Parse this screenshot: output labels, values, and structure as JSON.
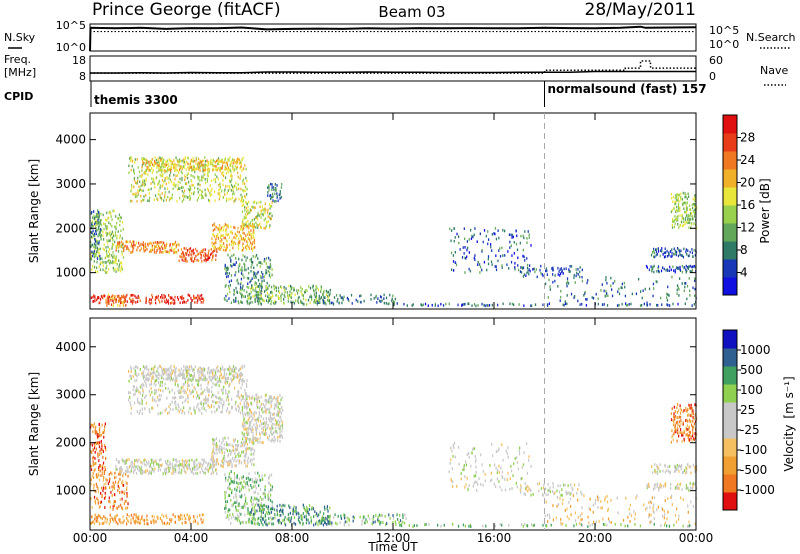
{
  "header": {
    "station": "Prince George (fitACF)",
    "beam": "Beam 03",
    "date": "28/May/2011"
  },
  "colors": {
    "power": [
      "#1010e0",
      "#1838b8",
      "#2f7a66",
      "#63a85a",
      "#99d04c",
      "#e8e63a",
      "#f0b028",
      "#ef7820",
      "#e83c18",
      "#e01010"
    ],
    "velocity": [
      "#e01010",
      "#ef7820",
      "#f0a030",
      "#f5c060",
      "#c8c8c8",
      "#c8c8c8",
      "#90d050",
      "#40a060",
      "#2f6090",
      "#1010c0"
    ],
    "ground_scatter": "#c0c0c0"
  },
  "chart_data": [
    {
      "type": "line",
      "panel": "nsky",
      "ylabel": "N.Sky",
      "yticks": [
        "10^5",
        "10^0"
      ],
      "right_label": "N.Search",
      "right_yticks": [
        "10^5",
        "10^0"
      ],
      "nsky_x_hours": [
        0.0,
        0.02,
        1,
        2,
        3,
        4,
        5,
        6,
        7,
        8,
        9,
        10,
        11,
        12,
        13,
        14,
        15,
        16,
        17,
        18,
        19,
        20,
        21,
        21.8,
        22,
        23,
        24
      ],
      "nsky_level": [
        0.0,
        0.86,
        0.84,
        0.86,
        0.82,
        0.85,
        0.84,
        0.87,
        0.8,
        0.82,
        0.83,
        0.82,
        0.84,
        0.83,
        0.85,
        0.84,
        0.85,
        0.84,
        0.84,
        0.86,
        0.85,
        0.84,
        0.86,
        0.9,
        0.86,
        0.87,
        0.88
      ],
      "nsearch_level": 0.72
    },
    {
      "type": "line",
      "panel": "freq",
      "ylabel_top": "Freq.",
      "ylabel_unit": "[MHz]",
      "yticks": [
        "18",
        "8"
      ],
      "right_label": "Nave",
      "right_yticks": [
        "60",
        "0"
      ],
      "freq_x_hours": [
        0,
        1,
        2,
        3,
        4,
        5,
        6,
        7,
        8,
        9,
        10,
        11,
        12,
        13,
        14,
        15,
        16,
        17,
        18,
        19,
        20,
        21,
        22,
        23,
        24
      ],
      "freq_mhz": [
        11.2,
        11.2,
        11.3,
        11.2,
        11.4,
        11.3,
        11.3,
        11.6,
        11.6,
        11.5,
        11.5,
        11.6,
        11.5,
        11.5,
        11.4,
        11.4,
        11.4,
        11.5,
        11.5,
        11.5,
        11.8,
        11.8,
        11.8,
        11.8,
        11.8
      ],
      "nave_x_hours": [
        0,
        18,
        18.01,
        21.2,
        21.2,
        21.8,
        21.8,
        22.2,
        22.2,
        24
      ],
      "nave": [
        19,
        19,
        26,
        26,
        31,
        31,
        48,
        48,
        31,
        31
      ]
    },
    {
      "type": "table",
      "panel": "cpid",
      "label": "CPID",
      "entries": [
        {
          "start_hour": 0,
          "text": "themis 3300"
        },
        {
          "start_hour": 18,
          "text": "normalsound (fast) 157"
        }
      ]
    },
    {
      "type": "heatmap",
      "panel": "power",
      "ylabel": "Slant Range [km]",
      "yticks": [
        "1000",
        "2000",
        "3000",
        "4000"
      ],
      "ylim": [
        180,
        4600
      ],
      "colorbar_label": "Power [dB]",
      "colorbar_ticks": [
        "4",
        "8",
        "12",
        "16",
        "20",
        "24",
        "28"
      ],
      "regions": [
        {
          "t0": 0.0,
          "t1": 4.5,
          "r0": 300,
          "r1": 500,
          "level": 8.5,
          "density": 0.55
        },
        {
          "t0": 0.6,
          "t1": 1.4,
          "r0": 250,
          "r1": 520,
          "level": 6.5,
          "density": 0.4
        },
        {
          "t0": 0.0,
          "t1": 1.3,
          "r0": 1000,
          "r1": 2400,
          "level": 4,
          "density": 0.35
        },
        {
          "t0": 0.0,
          "t1": 0.4,
          "r0": 1300,
          "r1": 2400,
          "level": 2,
          "density": 0.45
        },
        {
          "t0": 1.0,
          "t1": 3.5,
          "r0": 1450,
          "r1": 1700,
          "level": 6.5,
          "density": 0.6
        },
        {
          "t0": 3.5,
          "t1": 5.0,
          "r0": 1250,
          "r1": 1550,
          "level": 7.5,
          "density": 0.6
        },
        {
          "t0": 4.8,
          "t1": 6.5,
          "r0": 1500,
          "r1": 2100,
          "level": 6,
          "density": 0.5
        },
        {
          "t0": 6.0,
          "t1": 7.2,
          "r0": 2000,
          "r1": 2600,
          "level": 4.5,
          "density": 0.45
        },
        {
          "t0": 7.0,
          "t1": 7.6,
          "r0": 2600,
          "r1": 3000,
          "level": 2,
          "density": 0.45
        },
        {
          "t0": 1.5,
          "t1": 6.2,
          "r0": 2600,
          "r1": 3600,
          "level": 4.5,
          "density": 0.3
        },
        {
          "t0": 2.0,
          "t1": 6.0,
          "r0": 3300,
          "r1": 3550,
          "level": 5.5,
          "density": 0.55
        },
        {
          "t0": 5.3,
          "t1": 7.2,
          "r0": 300,
          "r1": 1400,
          "level": 2.5,
          "density": 0.3
        },
        {
          "t0": 6.2,
          "t1": 9.5,
          "r0": 280,
          "r1": 700,
          "level": 3.5,
          "density": 0.4
        },
        {
          "t0": 9.0,
          "t1": 12.5,
          "r0": 280,
          "r1": 500,
          "level": 2,
          "density": 0.25
        },
        {
          "t0": 12.0,
          "t1": 24.0,
          "r0": 250,
          "r1": 300,
          "level": 1.5,
          "density": 0.35
        },
        {
          "t0": 14.2,
          "t1": 17.5,
          "r0": 1000,
          "r1": 2000,
          "level": 1.5,
          "density": 0.12
        },
        {
          "t0": 17.0,
          "t1": 19.5,
          "r0": 900,
          "r1": 1150,
          "level": 1.5,
          "density": 0.25
        },
        {
          "t0": 18.0,
          "t1": 24.0,
          "r0": 300,
          "r1": 900,
          "level": 2,
          "density": 0.1
        },
        {
          "t0": 22.2,
          "t1": 24.0,
          "r0": 1350,
          "r1": 1550,
          "level": 1.5,
          "density": 0.55
        },
        {
          "t0": 22.0,
          "t1": 24.0,
          "r0": 1000,
          "r1": 1150,
          "level": 1.5,
          "density": 0.45
        },
        {
          "t0": 23.0,
          "t1": 24.0,
          "r0": 2000,
          "r1": 2800,
          "level": 4,
          "density": 0.45
        }
      ]
    },
    {
      "type": "heatmap",
      "panel": "velocity",
      "ylabel": "Slant Range [km]",
      "yticks": [
        "1000",
        "2000",
        "3000",
        "4000"
      ],
      "ylim": [
        180,
        4600
      ],
      "xlabel": "Time UT",
      "xticks": [
        "00:00",
        "04:00",
        "08:00",
        "12:00",
        "16:00",
        "20:00",
        "00:00"
      ],
      "colorbar_label": "Velocity",
      "colorbar_unit": "[m s⁻¹]",
      "colorbar_ticks": [
        "1000",
        "500",
        "100",
        "25",
        "-25",
        "-100",
        "-500",
        "-1000"
      ],
      "regions": [
        {
          "t0": 0.0,
          "t1": 4.5,
          "r0": 300,
          "r1": 500,
          "level": 2,
          "density": 0.55
        },
        {
          "t0": 0.0,
          "t1": 0.6,
          "r0": 1400,
          "r1": 2400,
          "level": 1,
          "density": 0.45
        },
        {
          "t0": 0.0,
          "t1": 1.5,
          "r0": 600,
          "r1": 1400,
          "level": 1.5,
          "density": 0.3
        },
        {
          "t0": 1.0,
          "t1": 5.0,
          "r0": 1350,
          "r1": 1650,
          "level": 4.5,
          "density": 0.6
        },
        {
          "t0": 4.8,
          "t1": 6.5,
          "r0": 1500,
          "r1": 2100,
          "level": 4.5,
          "density": 0.5
        },
        {
          "t0": 6.0,
          "t1": 7.6,
          "r0": 2000,
          "r1": 3000,
          "level": 4.5,
          "density": 0.5
        },
        {
          "t0": 1.5,
          "t1": 6.2,
          "r0": 2600,
          "r1": 3600,
          "level": 4.5,
          "density": 0.3
        },
        {
          "t0": 2.0,
          "t1": 6.0,
          "r0": 3300,
          "r1": 3550,
          "level": 4.5,
          "density": 0.45
        },
        {
          "t0": 5.3,
          "t1": 7.2,
          "r0": 300,
          "r1": 1400,
          "level": 6,
          "density": 0.3
        },
        {
          "t0": 6.2,
          "t1": 9.5,
          "r0": 280,
          "r1": 700,
          "level": 7,
          "density": 0.4
        },
        {
          "t0": 9.0,
          "t1": 12.5,
          "r0": 280,
          "r1": 500,
          "level": 6.5,
          "density": 0.3
        },
        {
          "t0": 12.0,
          "t1": 24.0,
          "r0": 250,
          "r1": 300,
          "level": 6,
          "density": 0.25
        },
        {
          "t0": 14.2,
          "t1": 17.5,
          "r0": 1000,
          "r1": 2000,
          "level": 4.5,
          "density": 0.12
        },
        {
          "t0": 17.0,
          "t1": 19.5,
          "r0": 900,
          "r1": 1150,
          "level": 4.5,
          "density": 0.25
        },
        {
          "t0": 18.0,
          "t1": 24.0,
          "r0": 300,
          "r1": 900,
          "level": 3,
          "density": 0.1
        },
        {
          "t0": 22.2,
          "t1": 24.0,
          "r0": 1350,
          "r1": 1550,
          "level": 4.5,
          "density": 0.55
        },
        {
          "t0": 22.0,
          "t1": 24.0,
          "r0": 1000,
          "r1": 1150,
          "level": 4.5,
          "density": 0.45
        },
        {
          "t0": 23.0,
          "t1": 24.0,
          "r0": 2000,
          "r1": 2800,
          "level": 1.5,
          "density": 0.45
        }
      ]
    }
  ]
}
